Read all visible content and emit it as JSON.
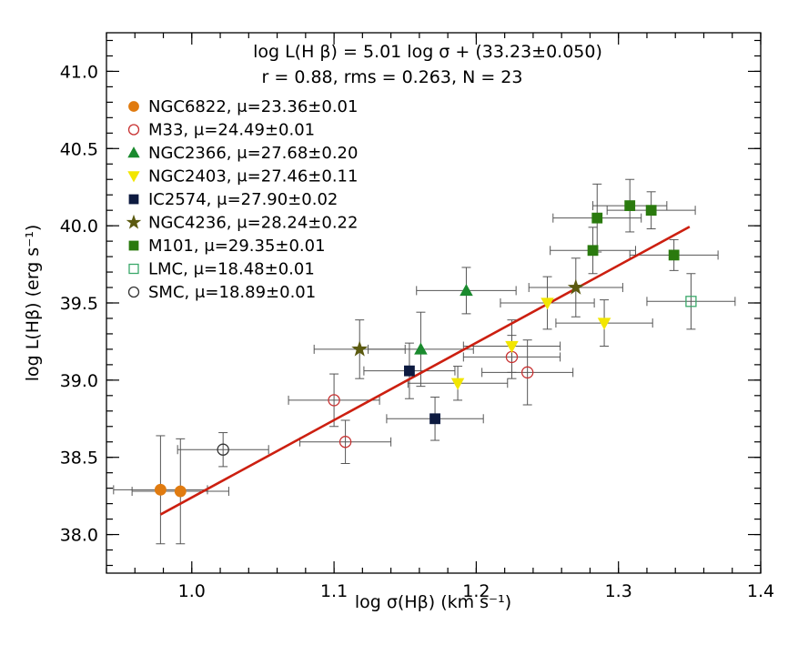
{
  "chart_data": {
    "type": "scatter",
    "xlabel": "log σ(Hβ) (km s⁻¹)",
    "ylabel": "log L(Hβ) (erg s⁻¹)",
    "xlim": [
      0.94,
      1.4
    ],
    "ylim": [
      37.75,
      41.25
    ],
    "x_ticks": [
      1.0,
      1.1,
      1.2,
      1.3,
      1.4
    ],
    "x_tick_labels": [
      "1.0",
      "1.1",
      "1.2",
      "1.3",
      "1.4"
    ],
    "y_ticks": [
      38.0,
      38.5,
      39.0,
      39.5,
      40.0,
      40.5,
      41.0
    ],
    "y_tick_labels": [
      "38.0",
      "38.5",
      "39.0",
      "39.5",
      "40.0",
      "40.5",
      "41.0"
    ],
    "grid": false,
    "legend_position": "top-left",
    "annotation_line1": "log L(H β) =  5.01 log σ + (33.23±0.050)",
    "annotation_line2": "r = 0.88, rms = 0.263, N = 23",
    "fit": {
      "slope": 5.01,
      "intercept": 33.23,
      "x_range": [
        0.978,
        1.35
      ],
      "color": "#cc1f10"
    },
    "series": [
      {
        "name": "NGC6822, μ=23.36±0.01",
        "marker": "circle",
        "filled": true,
        "color": "#e07b10",
        "points": [
          {
            "x": 0.978,
            "y": 38.29,
            "xerr": 0.033,
            "yerr": 0.35
          },
          {
            "x": 0.992,
            "y": 38.28,
            "xerr": 0.034,
            "yerr": 0.34
          }
        ]
      },
      {
        "name": "M33, μ=24.49±0.01",
        "marker": "circle",
        "filled": false,
        "color": "#c83232",
        "points": [
          {
            "x": 1.1,
            "y": 38.87,
            "xerr": 0.032,
            "yerr": 0.17
          },
          {
            "x": 1.108,
            "y": 38.6,
            "xerr": 0.032,
            "yerr": 0.14
          },
          {
            "x": 1.225,
            "y": 39.15,
            "xerr": 0.034,
            "yerr": 0.14
          },
          {
            "x": 1.236,
            "y": 39.05,
            "xerr": 0.032,
            "yerr": 0.21
          }
        ]
      },
      {
        "name": "NGC2366, μ=27.68±0.20",
        "marker": "triangle-up",
        "filled": true,
        "color": "#1a8a2e",
        "points": [
          {
            "x": 1.161,
            "y": 39.2,
            "xerr": 0.037,
            "yerr": 0.24
          },
          {
            "x": 1.193,
            "y": 39.58,
            "xerr": 0.035,
            "yerr": 0.15
          }
        ]
      },
      {
        "name": "NGC2403, μ=27.46±0.11",
        "marker": "triangle-down",
        "filled": true,
        "color": "#f2e600",
        "points": [
          {
            "x": 1.187,
            "y": 38.98,
            "xerr": 0.035,
            "yerr": 0.11
          },
          {
            "x": 1.225,
            "y": 39.22,
            "xerr": 0.034,
            "yerr": 0.17
          },
          {
            "x": 1.25,
            "y": 39.5,
            "xerr": 0.033,
            "yerr": 0.17
          },
          {
            "x": 1.29,
            "y": 39.37,
            "xerr": 0.034,
            "yerr": 0.15
          }
        ]
      },
      {
        "name": "IC2574, μ=27.90±0.02",
        "marker": "square",
        "filled": true,
        "color": "#0d1a40",
        "points": [
          {
            "x": 1.153,
            "y": 39.06,
            "xerr": 0.032,
            "yerr": 0.18
          },
          {
            "x": 1.171,
            "y": 38.75,
            "xerr": 0.034,
            "yerr": 0.14
          }
        ]
      },
      {
        "name": "NGC4236, μ=28.24±0.22",
        "marker": "star",
        "filled": true,
        "color": "#5b5a10",
        "points": [
          {
            "x": 1.118,
            "y": 39.2,
            "xerr": 0.032,
            "yerr": 0.19
          },
          {
            "x": 1.27,
            "y": 39.6,
            "xerr": 0.033,
            "yerr": 0.19
          }
        ]
      },
      {
        "name": "M101, μ=29.35±0.01",
        "marker": "square",
        "filled": true,
        "color": "#2a7a0e",
        "points": [
          {
            "x": 1.282,
            "y": 39.84,
            "xerr": 0.03,
            "yerr": 0.15
          },
          {
            "x": 1.285,
            "y": 40.05,
            "xerr": 0.031,
            "yerr": 0.22
          },
          {
            "x": 1.308,
            "y": 40.13,
            "xerr": 0.026,
            "yerr": 0.17
          },
          {
            "x": 1.323,
            "y": 40.1,
            "xerr": 0.031,
            "yerr": 0.12
          },
          {
            "x": 1.339,
            "y": 39.81,
            "xerr": 0.031,
            "yerr": 0.1
          }
        ]
      },
      {
        "name": "LMC, μ=18.48±0.01",
        "marker": "square",
        "filled": false,
        "color": "#3aa86a",
        "points": [
          {
            "x": 1.351,
            "y": 39.51,
            "xerr": 0.031,
            "yerr": 0.18
          }
        ]
      },
      {
        "name": "SMC, μ=18.89±0.01",
        "marker": "circle",
        "filled": false,
        "color": "#333333",
        "points": [
          {
            "x": 1.022,
            "y": 38.55,
            "xerr": 0.032,
            "yerr": 0.11
          }
        ]
      }
    ]
  }
}
